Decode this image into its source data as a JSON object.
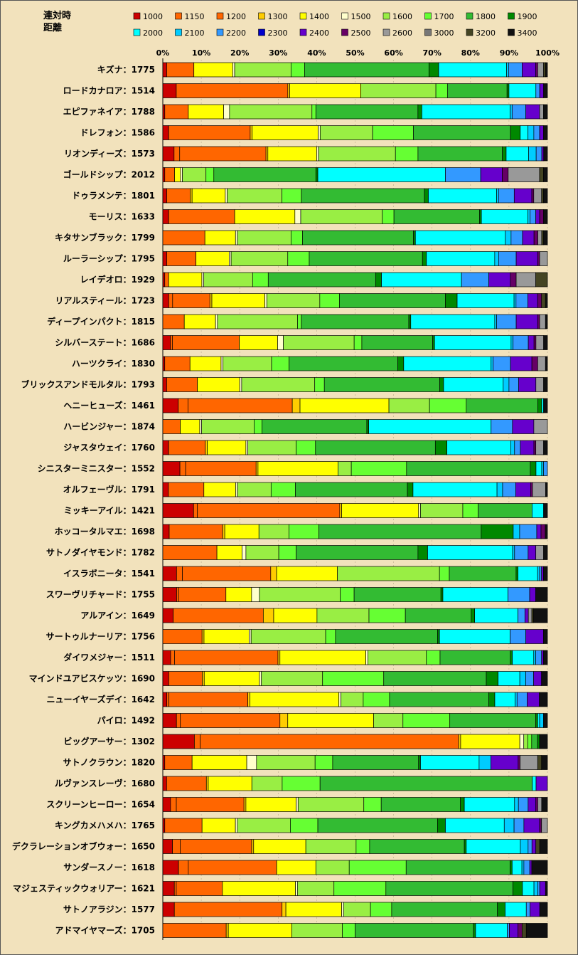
{
  "chart_data": {
    "type": "bar",
    "stacked": true,
    "orientation": "horizontal",
    "normalized_percent": true,
    "title": "",
    "legend_title": [
      "連対時",
      "距離"
    ],
    "xlim": [
      0,
      100
    ],
    "xticks": [
      "0%",
      "10%",
      "20%",
      "30%",
      "40%",
      "50%",
      "60%",
      "70%",
      "80%",
      "90%",
      "100%"
    ],
    "legend_position": "top",
    "segments": [
      {
        "name": "1000",
        "color": "#cc0000"
      },
      {
        "name": "1150",
        "color": "#ff6600"
      },
      {
        "name": "1200",
        "color": "#ff6600"
      },
      {
        "name": "1300",
        "color": "#ffcc00"
      },
      {
        "name": "1400",
        "color": "#ffff00"
      },
      {
        "name": "1500",
        "color": "#ffffcc"
      },
      {
        "name": "1600",
        "color": "#99ee44"
      },
      {
        "name": "1700",
        "color": "#66ff33"
      },
      {
        "name": "1800",
        "color": "#33bb33"
      },
      {
        "name": "1900",
        "color": "#008800"
      },
      {
        "name": "2000",
        "color": "#00ffff"
      },
      {
        "name": "2100",
        "color": "#00ccff"
      },
      {
        "name": "2200",
        "color": "#3399ff"
      },
      {
        "name": "2300",
        "color": "#0000cc"
      },
      {
        "name": "2400",
        "color": "#6600cc"
      },
      {
        "name": "2500",
        "color": "#660066"
      },
      {
        "name": "2600",
        "color": "#999999"
      },
      {
        "name": "3000",
        "color": "#777777"
      },
      {
        "name": "3200",
        "color": "#444422"
      },
      {
        "name": "3400",
        "color": "#111111"
      }
    ],
    "categories": [
      "キズナ：1775",
      "ロードカナロア：1514",
      "エピファネイア：1788",
      "ドレフォン：1586",
      "リオンディーズ：1573",
      "ゴールドシップ：2012",
      "ドゥラメンテ：1801",
      "モーリス：1633",
      "キタサンブラック：1799",
      "ルーラーシップ：1795",
      "レイデオロ：1929",
      "リアルスティール：1723",
      "ディープインパクト：1815",
      "シルバーステート：1686",
      "ハーツクライ：1830",
      "ブリックスアンドモルタル：1793",
      "ヘニーヒューズ：1461",
      "ハービンジャー：1874",
      "ジャスタウェイ：1760",
      "シニスターミニスター：1552",
      "オルフェーヴル：1791",
      "ミッキーアイル：1421",
      "ホッコータルマエ：1698",
      "サトノダイヤモンド：1782",
      "イスラボニータ：1541",
      "スワーヴリチャード：1755",
      "アルアイン：1649",
      "サートゥルナーリア：1756",
      "ダイワメジャー：1511",
      "マインドユアビスケッツ：1690",
      "ニューイヤーズデイ：1642",
      "パイロ：1492",
      "ビッグアーサー：1302",
      "サトノクラウン：1820",
      "ルヴァンスレーヴ：1680",
      "スクリーンヒーロー：1654",
      "キングカメハメハ：1765",
      "デクラレーションオブウォー：1650",
      "サンダースノー：1618",
      "マジェスティックウォリアー：1621",
      "サトノアラジン：1577",
      "アドマイヤマーズ：1705"
    ],
    "values": [
      [
        1,
        0,
        7,
        0,
        10,
        0.5,
        14.5,
        3.5,
        32,
        2.5,
        17.5,
        0.5,
        3.5,
        0,
        3.5,
        0.5,
        1.5,
        0,
        0.5,
        0.5
      ],
      [
        3.5,
        0,
        29,
        0.5,
        18.5,
        0,
        19.5,
        3,
        15.5,
        0.5,
        7,
        0,
        1,
        0,
        1,
        0,
        0,
        0,
        0,
        1
      ],
      [
        0.5,
        0,
        6,
        0,
        9,
        1.5,
        21,
        1,
        26,
        1,
        22.5,
        0.5,
        3.5,
        0,
        3.5,
        0,
        1,
        0,
        0,
        1
      ],
      [
        1.5,
        0,
        21,
        0.5,
        17,
        0.5,
        13.5,
        10.5,
        25,
        2.5,
        2,
        1.5,
        1.5,
        0,
        1,
        0,
        0,
        0,
        0,
        1
      ],
      [
        3,
        1.5,
        23,
        0.5,
        13,
        0.5,
        20.5,
        6,
        22.5,
        1,
        6,
        2,
        1.5,
        0,
        0.5,
        0,
        0,
        0,
        0,
        1
      ],
      [
        0.5,
        0,
        2.5,
        0,
        1.5,
        0.5,
        6,
        2,
        26,
        0.5,
        32.5,
        0,
        9,
        0,
        5.5,
        1.5,
        8,
        0,
        1,
        1
      ],
      [
        1,
        0,
        6,
        0.5,
        8.5,
        0.5,
        14,
        5,
        31.5,
        1,
        17.5,
        0.5,
        4,
        0,
        4.5,
        0.5,
        2,
        0,
        0.5,
        1
      ],
      [
        1.5,
        0,
        17,
        0,
        15.5,
        1.5,
        21,
        3,
        22,
        0.5,
        12,
        0.5,
        1.5,
        0,
        1,
        1,
        0,
        0,
        0,
        1
      ],
      [
        0,
        0,
        11,
        0,
        8,
        0.5,
        14,
        3,
        29,
        0.5,
        23.5,
        1.5,
        3,
        0,
        3,
        1,
        1,
        0,
        0.5,
        1
      ],
      [
        1,
        0,
        7.5,
        0,
        8.5,
        0.5,
        14.5,
        5.5,
        29,
        1,
        17.5,
        1,
        4.5,
        0,
        5.5,
        0.5,
        2,
        0,
        0,
        0
      ],
      [
        0.5,
        0,
        1,
        0,
        8.5,
        0.5,
        12.5,
        4,
        27.5,
        1.5,
        20.5,
        0,
        7,
        0,
        5.5,
        1.5,
        5,
        0,
        3,
        0
      ],
      [
        1.5,
        1,
        9.5,
        0.5,
        13.5,
        0.5,
        13.5,
        5,
        27,
        3,
        14.5,
        0.5,
        3,
        0,
        2.5,
        1,
        0,
        0,
        1,
        0.5
      ],
      [
        0,
        0,
        5.5,
        0,
        8,
        0.5,
        20.5,
        1,
        27.5,
        0.5,
        21.5,
        0.5,
        5,
        0,
        5.5,
        0.5,
        1.5,
        0,
        0,
        0.5
      ],
      [
        2,
        0.5,
        17.5,
        0,
        10,
        1.5,
        18.5,
        2,
        18.5,
        0.5,
        20,
        0.5,
        4,
        0,
        1.5,
        0.5,
        2,
        0,
        0,
        1
      ],
      [
        0.5,
        0,
        6.5,
        0,
        8,
        0.5,
        12.5,
        4.5,
        28,
        1.5,
        22.5,
        0.5,
        4.5,
        0,
        5.5,
        1.5,
        2,
        0,
        0,
        0.5
      ],
      [
        1,
        0,
        8,
        0,
        11,
        0.5,
        19,
        2.5,
        30,
        1,
        15.5,
        1.5,
        2.5,
        0,
        4.5,
        0,
        2,
        0,
        0,
        1
      ],
      [
        4,
        2.5,
        27,
        2,
        23,
        0,
        10.5,
        9.5,
        18.5,
        1,
        0.5,
        0,
        0,
        0,
        0,
        0,
        0,
        0,
        0,
        1
      ],
      [
        0,
        0,
        4.5,
        0,
        5,
        0.5,
        13.5,
        2,
        27,
        0.5,
        31.5,
        0,
        5.5,
        0,
        5.5,
        0,
        3.5,
        0,
        0,
        0
      ],
      [
        1.5,
        0,
        9.5,
        0.5,
        10,
        0.5,
        12.5,
        5,
        31,
        3,
        16.5,
        1,
        1.5,
        0,
        3.5,
        0.5,
        2,
        0,
        0,
        1
      ],
      [
        4.5,
        1.5,
        18.5,
        0.5,
        21,
        0,
        3.5,
        14.5,
        32.5,
        1.5,
        1.5,
        0.5,
        1,
        0,
        0,
        0,
        0,
        0,
        0,
        0
      ],
      [
        1.5,
        0,
        9.5,
        0,
        8.5,
        0.5,
        9,
        6.5,
        30,
        1.5,
        22.5,
        1.5,
        3.5,
        0,
        4,
        0.5,
        3.5,
        0,
        0,
        0.5
      ],
      [
        8,
        1,
        37,
        0.5,
        20,
        0.5,
        11,
        4,
        14,
        0,
        3,
        0,
        0,
        0,
        0,
        0,
        0,
        0,
        0,
        1
      ],
      [
        1.5,
        0,
        12.5,
        0.5,
        8,
        0,
        7,
        7,
        38,
        7.5,
        0,
        1.5,
        4,
        0,
        1,
        1,
        0,
        0,
        0,
        0.5
      ],
      [
        0,
        0,
        14,
        0,
        6.5,
        1,
        8.5,
        4.5,
        31.5,
        2.5,
        22,
        0.5,
        3.5,
        0,
        2,
        0,
        2,
        0,
        0,
        1
      ],
      [
        3.5,
        1.5,
        22.5,
        1.5,
        15.5,
        0,
        26,
        2.5,
        17,
        0.5,
        5,
        0.5,
        0.5,
        0,
        0.5,
        0,
        0,
        0,
        0,
        1
      ],
      [
        3.5,
        0.5,
        12,
        0,
        6.5,
        2,
        20.5,
        3.5,
        22,
        0.5,
        16.5,
        0,
        5.5,
        0,
        1.5,
        0,
        0,
        0,
        0,
        3
      ],
      [
        3,
        0,
        26,
        3,
        12.5,
        0,
        15,
        10.5,
        19,
        1,
        12.5,
        0,
        2,
        0,
        1,
        0,
        1,
        0,
        0.5,
        4
      ],
      [
        0,
        0,
        10,
        0.5,
        11.5,
        0.5,
        19,
        2.5,
        26,
        0.5,
        18,
        0,
        4,
        0,
        4.5,
        0,
        0,
        0,
        0,
        1
      ],
      [
        2,
        1,
        26.5,
        0.5,
        22,
        0.5,
        15,
        3.5,
        18,
        0.5,
        5.5,
        0.5,
        1.5,
        0,
        0.5,
        0,
        0,
        0,
        0,
        1
      ],
      [
        1.5,
        0,
        8.5,
        0.5,
        14,
        0.5,
        15.5,
        15.5,
        26,
        3,
        5.5,
        1.5,
        2,
        0,
        2,
        0,
        0,
        0,
        0,
        1.5
      ],
      [
        1,
        0.5,
        19.5,
        0.5,
        22,
        0.5,
        5.5,
        6.5,
        24.5,
        1.5,
        5,
        0.5,
        2.5,
        0,
        3,
        0,
        0,
        0,
        0,
        2
      ],
      [
        3.5,
        1,
        25.5,
        2,
        22,
        0,
        7.5,
        12,
        22,
        0.5,
        0.5,
        1,
        0,
        0,
        0,
        0,
        0,
        0,
        0,
        1
      ],
      [
        8,
        1.5,
        65.5,
        0.5,
        15,
        1,
        1,
        1,
        1.5,
        0.5,
        0,
        0,
        0,
        0,
        0,
        0,
        0,
        0,
        0,
        2
      ],
      [
        0.5,
        0,
        7,
        0,
        14,
        2.5,
        15,
        4.5,
        22,
        0.5,
        15,
        3,
        0,
        0,
        7,
        0.5,
        4.5,
        0,
        1,
        1.5
      ],
      [
        1,
        0,
        10.5,
        0.5,
        11.5,
        0,
        8,
        10,
        56,
        0,
        1,
        0,
        0,
        0,
        3,
        0,
        0,
        0,
        0,
        0
      ],
      [
        2,
        1.5,
        17.5,
        0.5,
        13,
        0.5,
        17,
        4.5,
        20.5,
        1,
        13,
        1,
        2.5,
        0,
        2,
        0.5,
        1,
        0,
        0,
        1.5
      ],
      [
        0.5,
        0,
        9.5,
        0,
        8.5,
        0.5,
        13.5,
        7,
        30.5,
        2,
        15,
        2.5,
        2.5,
        0,
        4,
        0.5,
        1.5,
        0,
        0,
        0
      ],
      [
        2.5,
        2,
        18.5,
        0.5,
        13.5,
        0,
        13,
        3.5,
        24.5,
        0.5,
        14,
        2,
        1,
        0,
        1,
        0,
        0,
        0,
        1,
        2
      ],
      [
        4,
        2.5,
        22.5,
        0,
        10,
        0,
        8.5,
        14.5,
        26.5,
        0.5,
        2.5,
        0.5,
        1.5,
        0,
        0.5,
        0,
        0,
        0,
        0,
        4
      ],
      [
        3,
        0.5,
        12,
        0,
        19,
        0.5,
        9.5,
        13.5,
        33,
        2.5,
        3,
        1,
        0.5,
        0,
        1.5,
        0,
        0,
        0,
        0,
        0.5
      ],
      [
        3,
        0,
        28,
        1,
        14.5,
        0.5,
        7,
        5.5,
        27.5,
        2,
        5.5,
        0,
        1,
        0,
        2.5,
        0,
        0,
        0,
        0,
        2
      ],
      [
        0,
        0,
        15,
        0.5,
        15,
        0,
        12,
        3,
        28,
        0.5,
        7.5,
        0,
        0.5,
        0,
        2,
        1,
        0,
        0,
        1,
        5
      ]
    ]
  }
}
